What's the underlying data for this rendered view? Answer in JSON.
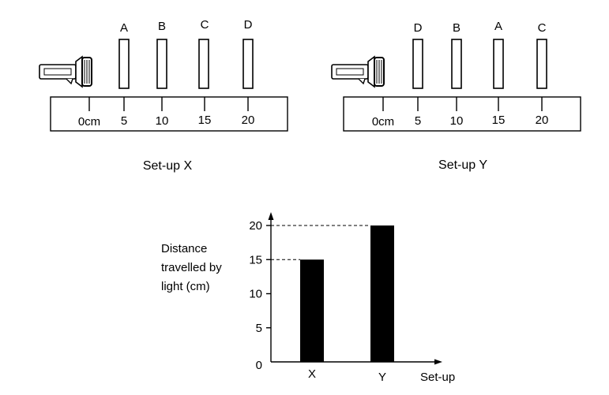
{
  "setup_x": {
    "card_labels": [
      "A",
      "B",
      "C",
      "D"
    ],
    "ruler_ticks": [
      "0cm",
      "5",
      "10",
      "15",
      "20"
    ],
    "caption": "Set-up X"
  },
  "setup_y": {
    "card_labels": [
      "D",
      "B",
      "A",
      "C"
    ],
    "ruler_ticks": [
      "0cm",
      "5",
      "10",
      "15",
      "20"
    ],
    "caption": "Set-up Y"
  },
  "chart": {
    "ylabel_lines": [
      "Distance",
      "travelled by",
      "light (cm)"
    ],
    "xlabel": "Set-up",
    "y_ticks": [
      "0",
      "5",
      "10",
      "15",
      "20"
    ]
  },
  "chart_data": {
    "type": "bar",
    "categories": [
      "X",
      "Y"
    ],
    "values": [
      15,
      20
    ],
    "ylabel": "Distance travelled by light (cm)",
    "xlabel": "Set-up",
    "ylim": [
      0,
      20
    ],
    "y_ticks": [
      0,
      5,
      10,
      15,
      20
    ],
    "reference_lines": [
      15,
      20
    ],
    "bar_color": "#000000"
  }
}
